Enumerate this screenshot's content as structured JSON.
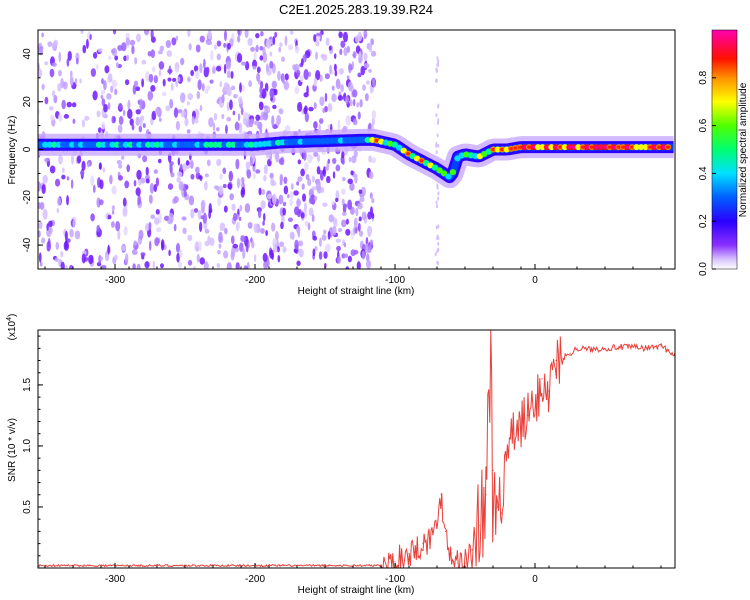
{
  "title": "C2E1.2025.283.19.39.R24",
  "chart_data": [
    {
      "type": "heatmap",
      "panel": "spectrogram",
      "xlabel": "Height of straight line (km)",
      "ylabel": "Frequency (Hz)",
      "xlim": [
        -355,
        100
      ],
      "ylim": [
        -50,
        50
      ],
      "xticks": [
        -300,
        -200,
        -100,
        0
      ],
      "yticks": [
        -40,
        -20,
        0,
        20,
        40
      ],
      "colorbar": {
        "label": "Normalized spectral amplitude",
        "range": [
          0,
          1
        ],
        "ticks": [
          "0.0",
          "0.2",
          "0.4",
          "0.6",
          "0.8"
        ],
        "colormap": [
          "#ffffff",
          "#c8a0ff",
          "#6a00ff",
          "#0000ff",
          "#00c8ff",
          "#00ff80",
          "#40ff00",
          "#ffff00",
          "#ff8000",
          "#ff0000",
          "#ff00a0"
        ]
      },
      "ridge": {
        "x": [
          -355,
          -300,
          -250,
          -200,
          -180,
          -125,
          -115,
          -100,
          -90,
          -80,
          -70,
          -60,
          -55,
          -50,
          -40,
          -30,
          -20,
          -10,
          0,
          20,
          40,
          60,
          80,
          100
        ],
        "y": [
          2,
          2,
          2,
          2,
          3,
          4,
          4,
          2,
          -2,
          -5,
          -8,
          -12,
          -3,
          -2,
          -3,
          0,
          0,
          1,
          1,
          1,
          1,
          1,
          1,
          1
        ]
      },
      "noise_region_x": [
        -355,
        -115
      ]
    },
    {
      "type": "line",
      "panel": "snr",
      "xlabel": "Height of straight line (km)",
      "ylabel": "SNR (10 * v/v)",
      "scale_label": "(x10",
      "scale_exponent": "4",
      "xlim": [
        -355,
        100
      ],
      "ylim": [
        0,
        1.95
      ],
      "xticks": [
        -300,
        -200,
        -100,
        0
      ],
      "yticks": [
        "0.5",
        "1.0",
        "1.5"
      ],
      "series": [
        {
          "color": "#e8403a",
          "x": [
            -355,
            -300,
            -250,
            -200,
            -150,
            -110,
            -100,
            -90,
            -85,
            -80,
            -75,
            -70,
            -67,
            -64,
            -60,
            -55,
            -50,
            -45,
            -40,
            -35,
            -32,
            -30,
            -27,
            -24,
            -20,
            -15,
            -10,
            -5,
            0,
            5,
            10,
            15,
            20,
            25,
            30,
            40,
            50,
            60,
            70,
            80,
            90,
            95,
            100
          ],
          "y": [
            0.02,
            0.02,
            0.02,
            0.02,
            0.02,
            0.02,
            0.05,
            0.12,
            0.16,
            0.2,
            0.24,
            0.35,
            0.6,
            0.3,
            0.12,
            0.05,
            0.04,
            0.15,
            0.35,
            0.6,
            1.95,
            0.8,
            0.5,
            0.45,
            0.95,
            1.1,
            1.15,
            1.25,
            1.3,
            1.55,
            1.45,
            1.7,
            1.72,
            1.76,
            1.8,
            1.79,
            1.8,
            1.81,
            1.81,
            1.8,
            1.82,
            1.78,
            1.75
          ]
        }
      ]
    }
  ]
}
